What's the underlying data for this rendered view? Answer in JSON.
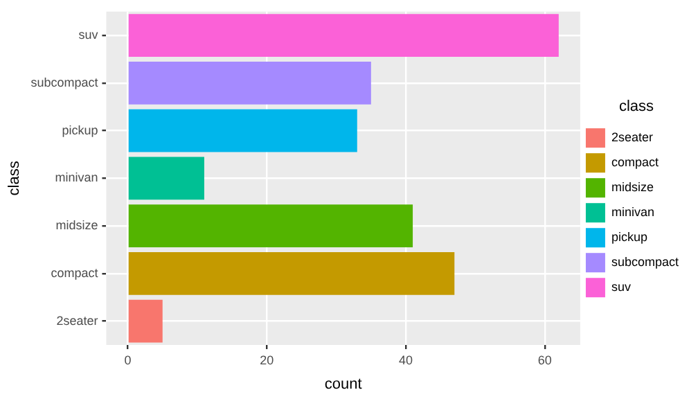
{
  "chart_data": {
    "type": "bar",
    "orientation": "horizontal",
    "xlabel": "count",
    "ylabel": "class",
    "legend_title": "class",
    "categories": [
      "suv",
      "subcompact",
      "pickup",
      "minivan",
      "midsize",
      "compact",
      "2seater"
    ],
    "series": [
      {
        "name": "2seater",
        "color": "#f8766d",
        "values": [
          null,
          null,
          null,
          null,
          null,
          null,
          5
        ]
      },
      {
        "name": "compact",
        "color": "#c49a00",
        "values": [
          null,
          null,
          null,
          null,
          null,
          47,
          null
        ]
      },
      {
        "name": "midsize",
        "color": "#53b400",
        "values": [
          null,
          null,
          null,
          null,
          41,
          null,
          null
        ]
      },
      {
        "name": "minivan",
        "color": "#00c094",
        "values": [
          null,
          null,
          null,
          11,
          null,
          null,
          null
        ]
      },
      {
        "name": "pickup",
        "color": "#00b6eb",
        "values": [
          null,
          null,
          33,
          null,
          null,
          null,
          null
        ]
      },
      {
        "name": "subcompact",
        "color": "#a58aff",
        "values": [
          null,
          35,
          null,
          null,
          null,
          null,
          null
        ]
      },
      {
        "name": "suv",
        "color": "#fb61d7",
        "values": [
          62,
          null,
          null,
          null,
          null,
          null,
          null
        ]
      }
    ],
    "xlim": [
      -3.1,
      65.1
    ],
    "xticks": [
      0,
      20,
      40,
      60
    ],
    "grid": true,
    "legend": "right"
  }
}
